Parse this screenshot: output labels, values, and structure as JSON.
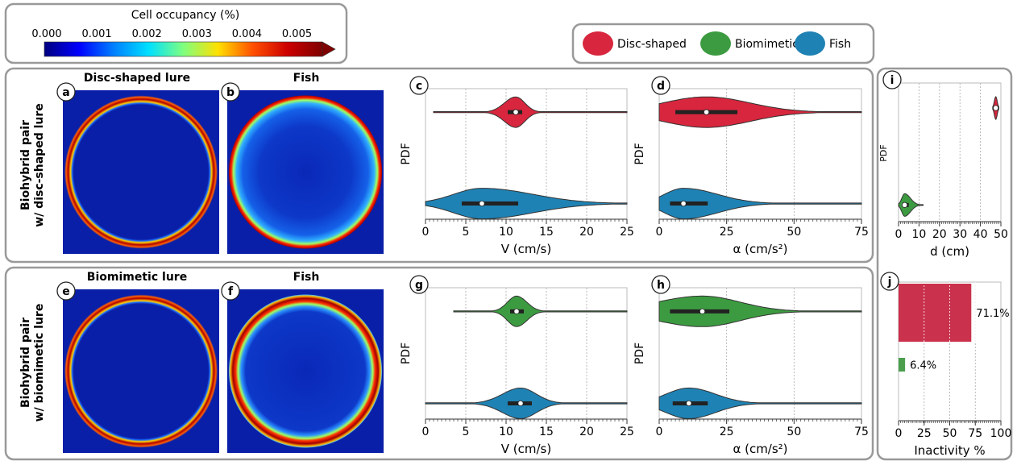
{
  "colorbar": {
    "title": "Cell occupancy (%)",
    "ticks": [
      "0.000",
      "0.001",
      "0.002",
      "0.003",
      "0.004",
      "0.005"
    ],
    "colors": [
      "#00007f",
      "#0000ff",
      "#0080ff",
      "#00e0ff",
      "#7fff7f",
      "#ffe000",
      "#ff5000",
      "#cc0000",
      "#7f0000"
    ]
  },
  "legend": {
    "items": [
      {
        "label": "Disc-shaped",
        "color": "#d7263d"
      },
      {
        "label": "Biomimetic",
        "color": "#3c9b40"
      },
      {
        "label": "Fish",
        "color": "#1f82b4"
      }
    ]
  },
  "rows": [
    {
      "row_label_1": "Biohybrid pair",
      "row_label_2": "w/ disc-shaped lure"
    },
    {
      "row_label_1": "Biohybrid pair",
      "row_label_2": "w/ biomimetic lure"
    }
  ],
  "heatmaps": [
    {
      "letter": "a",
      "title": "Disc-shaped lure"
    },
    {
      "letter": "b",
      "title": "Fish"
    },
    {
      "letter": "e",
      "title": "Biomimetic lure"
    },
    {
      "letter": "f",
      "title": "Fish"
    }
  ],
  "chart_data": [
    {
      "panel": "c",
      "type": "violin",
      "ylabel": "PDF",
      "xlabel": "V (cm/s)",
      "xlim": [
        0,
        25
      ],
      "xticks": [
        "0",
        "5",
        "10",
        "15",
        "20",
        "25"
      ],
      "series": [
        {
          "name": "Disc-shaped",
          "color": "#d7263d",
          "min": 1,
          "q1": 10.2,
          "median": 11.2,
          "q3": 12.0,
          "max": 25
        },
        {
          "name": "Fish",
          "color": "#1f82b4",
          "min": 0,
          "q1": 4.5,
          "median": 7.0,
          "q3": 11.5,
          "max": 25
        }
      ]
    },
    {
      "panel": "d",
      "type": "violin",
      "ylabel": "PDF",
      "xlabel": "α (cm/s²)",
      "xlim": [
        0,
        75
      ],
      "xticks": [
        "0",
        "25",
        "50",
        "75"
      ],
      "series": [
        {
          "name": "Disc-shaped",
          "color": "#d7263d",
          "min": 0,
          "q1": 6,
          "median": 17.5,
          "q3": 29,
          "max": 75
        },
        {
          "name": "Fish",
          "color": "#1f82b4",
          "min": 0,
          "q1": 4,
          "median": 9,
          "q3": 18,
          "max": 75
        }
      ]
    },
    {
      "panel": "g",
      "type": "violin",
      "ylabel": "PDF",
      "xlabel": "V (cm/s)",
      "xlim": [
        0,
        25
      ],
      "xticks": [
        "0",
        "5",
        "10",
        "15",
        "20",
        "25"
      ],
      "series": [
        {
          "name": "Biomimetic",
          "color": "#3c9b40",
          "min": 3.5,
          "q1": 10.5,
          "median": 11.3,
          "q3": 12.2,
          "max": 25
        },
        {
          "name": "Fish",
          "color": "#1f82b4",
          "min": 0,
          "q1": 10.2,
          "median": 11.8,
          "q3": 13.2,
          "max": 25
        }
      ]
    },
    {
      "panel": "h",
      "type": "violin",
      "ylabel": "PDF",
      "xlabel": "α (cm/s²)",
      "xlim": [
        0,
        75
      ],
      "xticks": [
        "0",
        "25",
        "50",
        "75"
      ],
      "series": [
        {
          "name": "Biomimetic",
          "color": "#3c9b40",
          "min": 0,
          "q1": 4,
          "median": 16,
          "q3": 26,
          "max": 75
        },
        {
          "name": "Fish",
          "color": "#1f82b4",
          "min": 0,
          "q1": 5,
          "median": 11,
          "q3": 18,
          "max": 75
        }
      ]
    },
    {
      "panel": "i",
      "type": "violin",
      "ylabel": "PDF",
      "xlabel": "d (cm)",
      "xlim": [
        0,
        50
      ],
      "xticks": [
        "0",
        "10",
        "20",
        "30",
        "40",
        "50"
      ],
      "series": [
        {
          "name": "Disc-shaped",
          "color": "#d7263d",
          "min": 46,
          "q1": 47,
          "median": 47.5,
          "q3": 48,
          "max": 49
        },
        {
          "name": "Biomimetic",
          "color": "#3c9b40",
          "min": 0,
          "q1": 2,
          "median": 3,
          "q3": 5,
          "max": 12
        }
      ]
    },
    {
      "panel": "j",
      "type": "bar",
      "orientation": "horizontal",
      "xlabel": "Inactivity %",
      "xlim": [
        0,
        100
      ],
      "xticks": [
        "0",
        "25",
        "50",
        "75",
        "100"
      ],
      "categories": [
        "Disc-shaped",
        "Biomimetic"
      ],
      "values": [
        71.1,
        6.4
      ],
      "value_labels": [
        "71.1%",
        "6.4%"
      ],
      "colors": [
        "#c9314c",
        "#4a9e4e"
      ]
    }
  ]
}
